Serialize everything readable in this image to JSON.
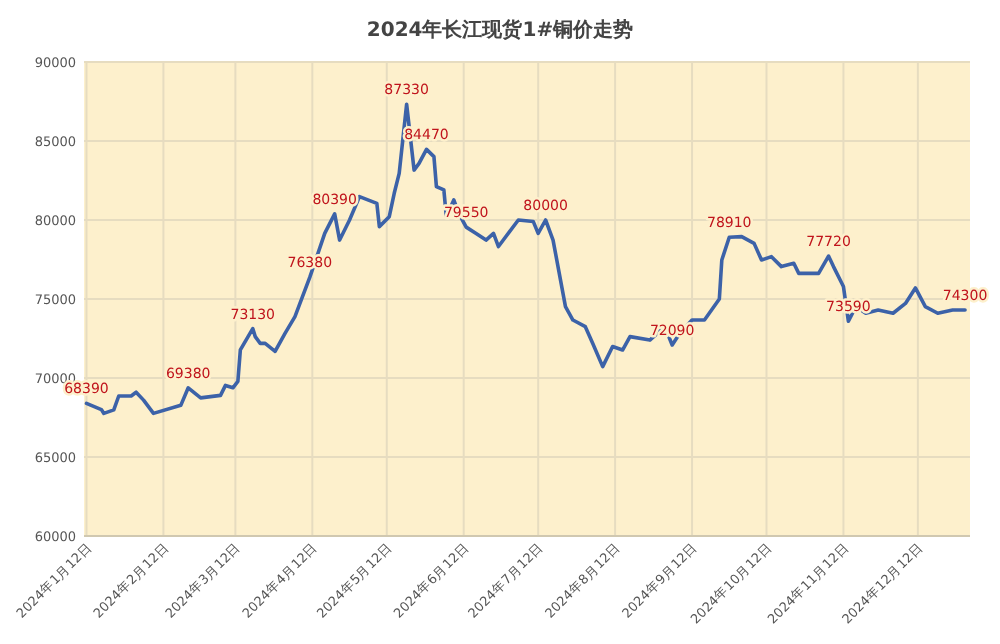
{
  "chart_data": {
    "type": "line",
    "title": "2024年长江现货1#铜价走势",
    "x": [
      "2024-01-12",
      "2024-01-18",
      "2024-01-19",
      "2024-01-23",
      "2024-01-25",
      "2024-01-30",
      "2024-02-01",
      "2024-02-04",
      "2024-02-08",
      "2024-02-19",
      "2024-02-22",
      "2024-02-27",
      "2024-03-06",
      "2024-03-08",
      "2024-03-11",
      "2024-03-13",
      "2024-03-14",
      "2024-03-19",
      "2024-03-20",
      "2024-03-22",
      "2024-03-24",
      "2024-03-28",
      "2024-04-01",
      "2024-04-05",
      "2024-04-11",
      "2024-04-17",
      "2024-04-21",
      "2024-04-23",
      "2024-04-27",
      "2024-05-01",
      "2024-05-08",
      "2024-05-09",
      "2024-05-13",
      "2024-05-15",
      "2024-05-17",
      "2024-05-20",
      "2024-05-23",
      "2024-05-25",
      "2024-05-28",
      "2024-05-31",
      "2024-06-01",
      "2024-06-04",
      "2024-06-05",
      "2024-06-08",
      "2024-06-10",
      "2024-06-13",
      "2024-06-17",
      "2024-06-21",
      "2024-06-24",
      "2024-06-26",
      "2024-07-04",
      "2024-07-10",
      "2024-07-12",
      "2024-07-15",
      "2024-07-18",
      "2024-07-23",
      "2024-07-26",
      "2024-07-31",
      "2024-08-03",
      "2024-08-07",
      "2024-08-11",
      "2024-08-15",
      "2024-08-18",
      "2024-08-26",
      "2024-09-01",
      "2024-09-04",
      "2024-09-07",
      "2024-09-12",
      "2024-09-17",
      "2024-09-23",
      "2024-09-24",
      "2024-09-27",
      "2024-10-02",
      "2024-10-07",
      "2024-10-10",
      "2024-10-14",
      "2024-10-18",
      "2024-10-23",
      "2024-10-25",
      "2024-11-02",
      "2024-11-06",
      "2024-11-08",
      "2024-11-12",
      "2024-11-14",
      "2024-11-17",
      "2024-11-21",
      "2024-11-26",
      "2024-12-02",
      "2024-12-07",
      "2024-12-11",
      "2024-12-15",
      "2024-12-20",
      "2024-12-26",
      "2024-12-31"
    ],
    "series": [
      {
        "color": "#3c62a8",
        "values": [
          68390,
          68000,
          67760,
          67980,
          68860,
          68860,
          69100,
          68600,
          67760,
          68270,
          69380,
          68740,
          68900,
          69530,
          69380,
          69780,
          71780,
          73130,
          72620,
          72190,
          72190,
          71690,
          72820,
          73880,
          76380,
          79150,
          80390,
          78730,
          80000,
          81480,
          81050,
          79580,
          80210,
          81690,
          82950,
          87330,
          83160,
          83580,
          84470,
          84010,
          82110,
          81900,
          80210,
          81270,
          80420,
          79550,
          79150,
          78730,
          79150,
          78320,
          80000,
          79910,
          79150,
          80000,
          78730,
          74520,
          73670,
          73250,
          72190,
          70720,
          71990,
          71770,
          72620,
          72400,
          73250,
          72090,
          72820,
          73670,
          73670,
          75000,
          77470,
          78910,
          78950,
          78520,
          77470,
          77680,
          77050,
          77260,
          76620,
          76620,
          77720,
          77050,
          75790,
          73590,
          74520,
          74100,
          74300,
          74100,
          74720,
          75700,
          74520,
          74100,
          74300,
          74300
        ]
      }
    ],
    "xlim": [
      "2024-01-11",
      "2025-01-02"
    ],
    "xticks": [
      {
        "value": "2024-01-12",
        "label": "2024年1月12日"
      },
      {
        "value": "2024-02-12",
        "label": "2024年2月12日"
      },
      {
        "value": "2024-03-12",
        "label": "2024年3月12日"
      },
      {
        "value": "2024-04-12",
        "label": "2024年4月12日"
      },
      {
        "value": "2024-05-12",
        "label": "2024年5月12日"
      },
      {
        "value": "2024-06-12",
        "label": "2024年6月12日"
      },
      {
        "value": "2024-07-12",
        "label": "2024年7月12日"
      },
      {
        "value": "2024-08-12",
        "label": "2024年8月12日"
      },
      {
        "value": "2024-09-12",
        "label": "2024年9月12日"
      },
      {
        "value": "2024-10-12",
        "label": "2024年10月12日"
      },
      {
        "value": "2024-11-12",
        "label": "2024年11月12日"
      },
      {
        "value": "2024-12-12",
        "label": "2024年12月12日"
      }
    ],
    "ylim": [
      60000,
      90000
    ],
    "yticks": [
      60000,
      65000,
      70000,
      75000,
      80000,
      85000,
      90000
    ],
    "grid": true,
    "annotations": [
      {
        "text": "68390",
        "x": "2024-01-12",
        "y": 68390
      },
      {
        "text": "69380",
        "x": "2024-02-22",
        "y": 69380
      },
      {
        "text": "73130",
        "x": "2024-03-19",
        "y": 73130
      },
      {
        "text": "76380",
        "x": "2024-04-11",
        "y": 76380
      },
      {
        "text": "80390",
        "x": "2024-04-21",
        "y": 80390
      },
      {
        "text": "87330",
        "x": "2024-05-20",
        "y": 87330
      },
      {
        "text": "84470",
        "x": "2024-05-28",
        "y": 84470
      },
      {
        "text": "79550",
        "x": "2024-06-13",
        "y": 79550
      },
      {
        "text": "80000",
        "x": "2024-07-15",
        "y": 80000
      },
      {
        "text": "72090",
        "x": "2024-09-04",
        "y": 72090
      },
      {
        "text": "78910",
        "x": "2024-09-27",
        "y": 78910
      },
      {
        "text": "77720",
        "x": "2024-11-06",
        "y": 77720
      },
      {
        "text": "73590",
        "x": "2024-11-14",
        "y": 73590
      },
      {
        "text": "74300",
        "x": "2024-12-31",
        "y": 74300
      }
    ]
  }
}
